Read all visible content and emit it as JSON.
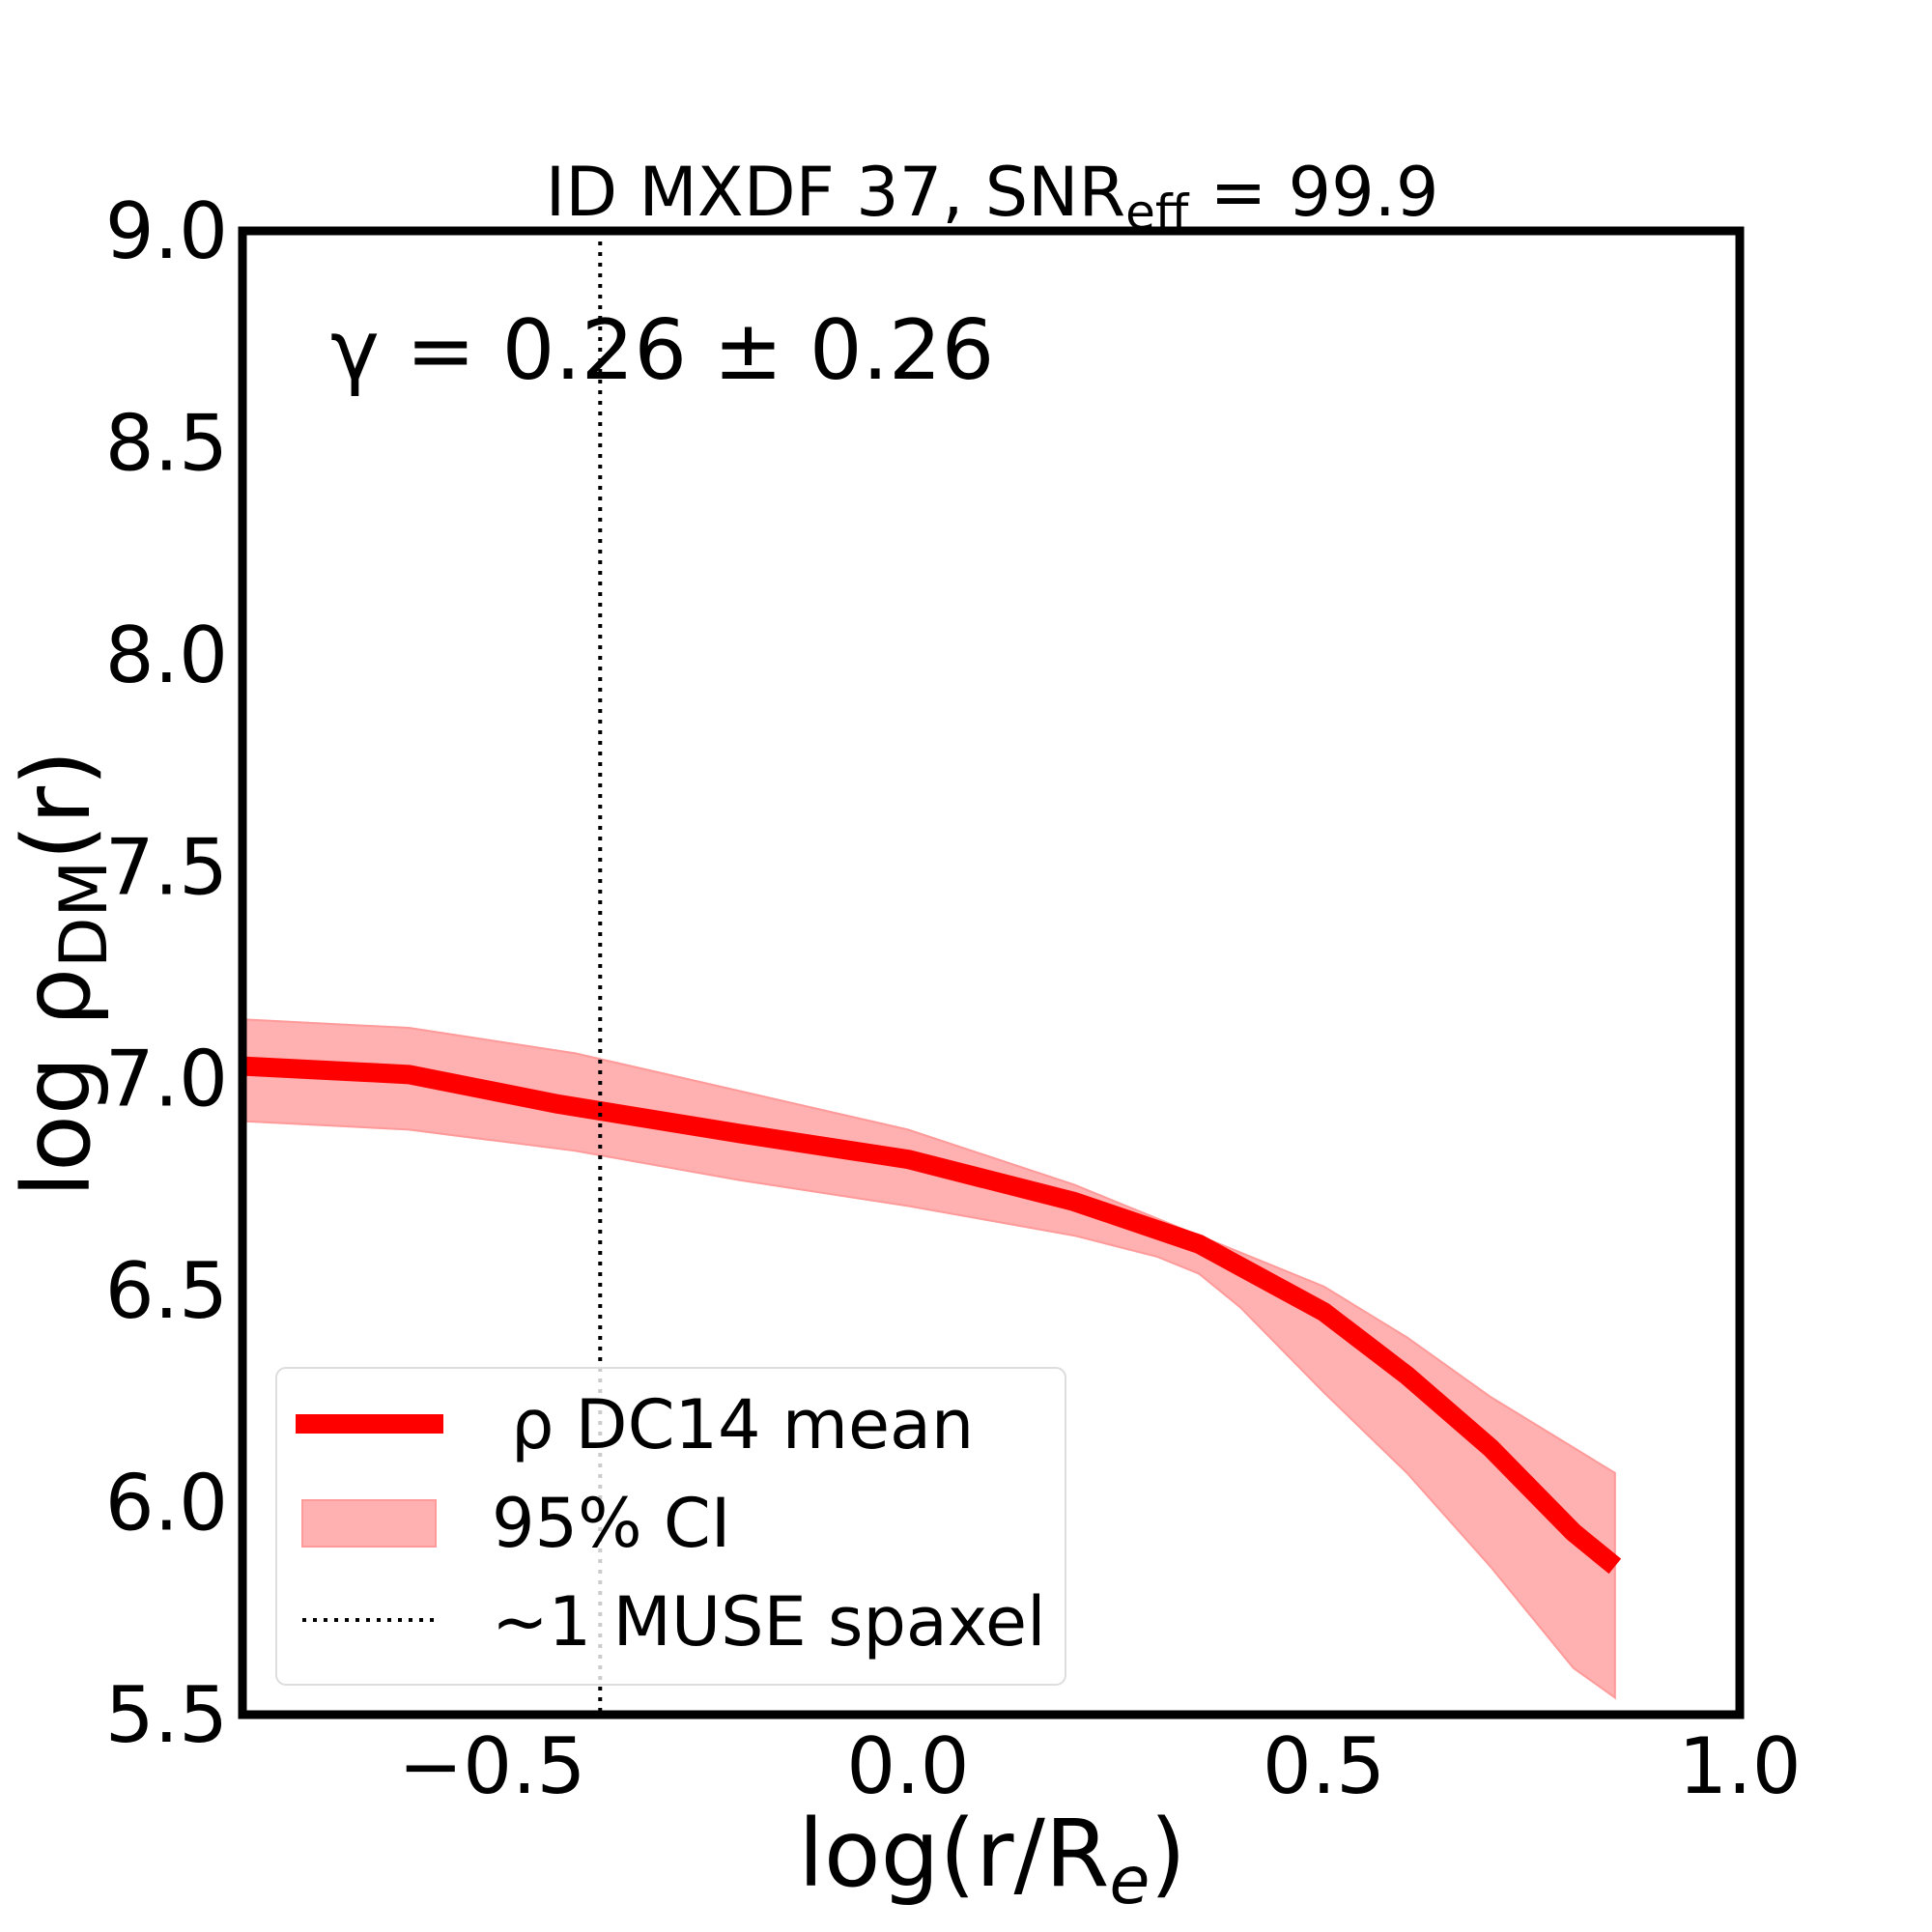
{
  "chart_data": {
    "type": "line",
    "title": "ID MXDF 37, SNR",
    "title_sub": "eff",
    "title_suffix": " = 99.9",
    "annotation": "γ = 0.26 ± 0.26",
    "xlabel": "log(r/R",
    "xlabel_sub": "e",
    "xlabel_suffix": ")",
    "ylabel": "log ρ",
    "ylabel_sub": "DM",
    "ylabel_suffix": "(r)",
    "xlim": [
      -0.8,
      1.0
    ],
    "ylim": [
      5.5,
      9.0
    ],
    "xticks": [
      -0.5,
      0.0,
      0.5,
      1.0
    ],
    "xtick_labels": [
      "−0.5",
      "0.0",
      "0.5",
      "1.0"
    ],
    "yticks": [
      5.5,
      6.0,
      6.5,
      7.0,
      7.5,
      8.0,
      8.5,
      9.0
    ],
    "ytick_labels": [
      "5.5",
      "6.0",
      "6.5",
      "7.0",
      "7.5",
      "8.0",
      "8.5",
      "9.0"
    ],
    "grid": false,
    "legend_placement": "lower-left",
    "series": [
      {
        "name": "ρ DC14 mean",
        "color": "#ff0000",
        "x": [
          -0.8,
          -0.6,
          -0.42,
          -0.2,
          0.0,
          0.2,
          0.35,
          0.5,
          0.6,
          0.7,
          0.8,
          0.85
        ],
        "y": [
          7.03,
          7.01,
          6.94,
          6.87,
          6.81,
          6.71,
          6.61,
          6.45,
          6.3,
          6.13,
          5.93,
          5.85
        ]
      }
    ],
    "band": {
      "name": "95% CI",
      "color": "#ffb0b0",
      "x": [
        -0.8,
        -0.6,
        -0.4,
        -0.2,
        0.0,
        0.2,
        0.3,
        0.35,
        0.4,
        0.5,
        0.6,
        0.7,
        0.8,
        0.85
      ],
      "upper": [
        7.14,
        7.12,
        7.06,
        6.97,
        6.88,
        6.75,
        6.67,
        6.63,
        6.59,
        6.51,
        6.39,
        6.25,
        6.13,
        6.07
      ],
      "lower": [
        6.9,
        6.88,
        6.83,
        6.76,
        6.7,
        6.63,
        6.58,
        6.54,
        6.46,
        6.26,
        6.07,
        5.85,
        5.61,
        5.54
      ]
    },
    "vline": {
      "name": "~1 MUSE spaxel",
      "x": -0.37,
      "style": "dotted",
      "color": "#000000"
    }
  }
}
